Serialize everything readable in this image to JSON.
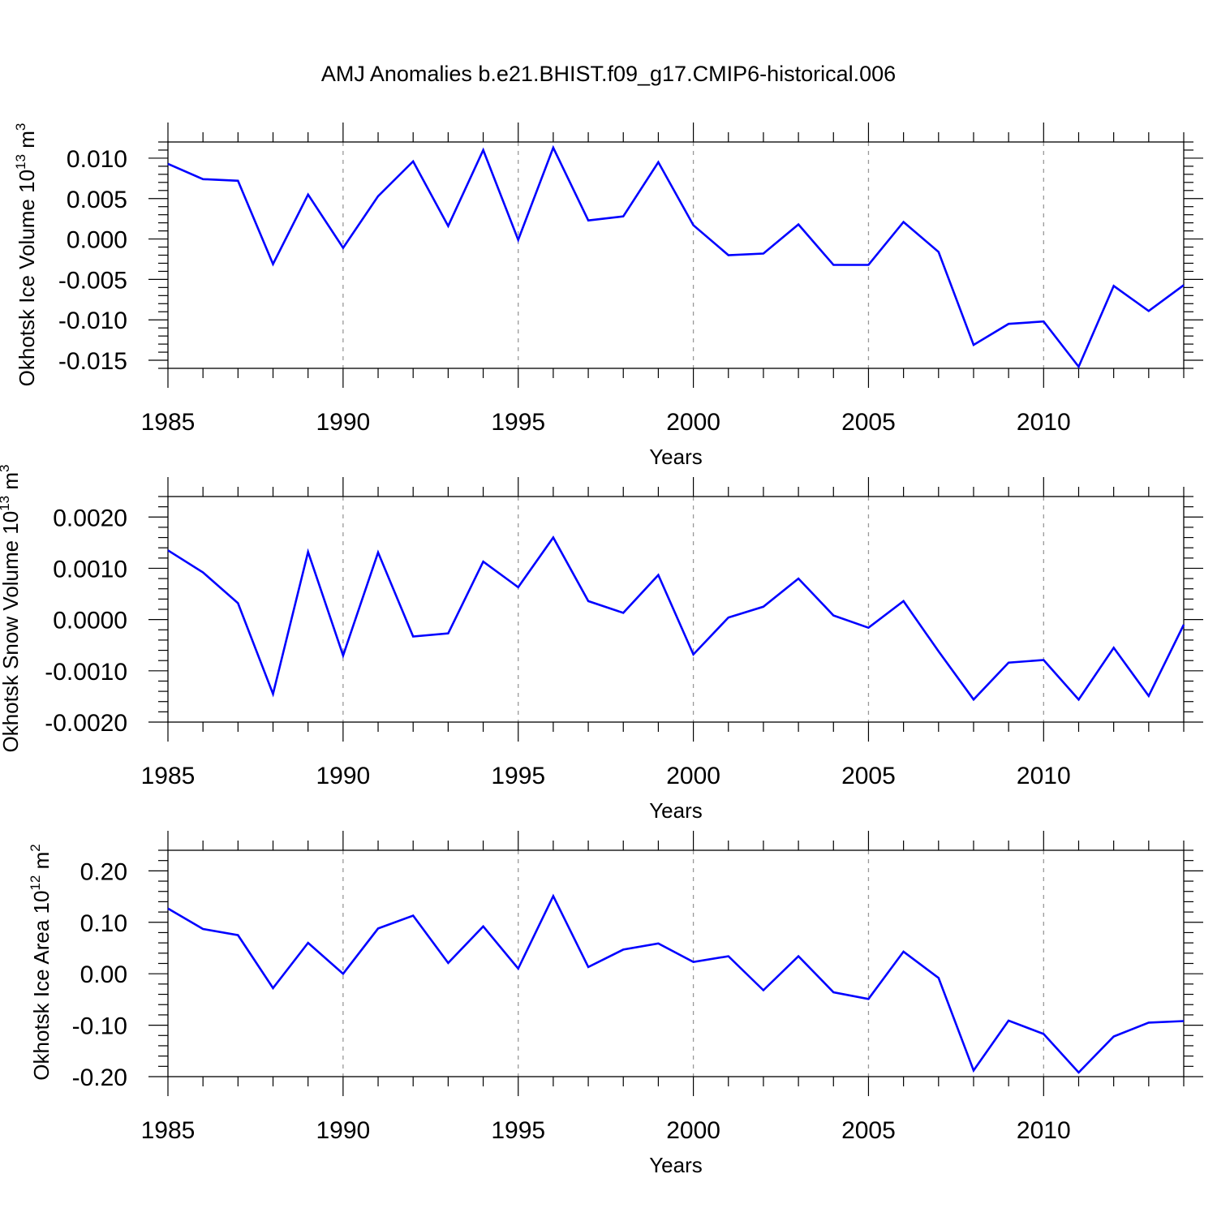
{
  "title": "AMJ Anomalies b.e21.BHIST.f09_g17.CMIP6-historical.006",
  "colors": {
    "line": "#0000ff",
    "axes": "#000000",
    "grid": "#999999"
  },
  "chart_data": [
    {
      "type": "line",
      "ylabel": {
        "main": "Okhotsk Ice Volume 10",
        "sup": "13",
        "unit": " m",
        "unit_sup": "3"
      },
      "xlabel": "Years",
      "xlim": [
        1985,
        2014
      ],
      "ylim": [
        -0.016,
        0.012
      ],
      "yticks": [
        -0.015,
        -0.01,
        -0.005,
        0.0,
        0.005,
        0.01
      ],
      "ytick_labels": [
        "-0.015",
        "-0.010",
        "-0.005",
        "0.000",
        "0.005",
        "0.010"
      ],
      "xticks": [
        1985,
        1990,
        1995,
        2000,
        2005,
        2010
      ],
      "xtick_labels": [
        "1985",
        "1990",
        "1995",
        "2000",
        "2005",
        "2010"
      ],
      "grid": "vertical dashed at major x ticks",
      "series": [
        {
          "x": [
            1985,
            1986,
            1987,
            1988,
            1989,
            1990,
            1991,
            1992,
            1993,
            1994,
            1995,
            1996,
            1997,
            1998,
            1999,
            2000,
            2001,
            2002,
            2003,
            2004,
            2005,
            2006,
            2007,
            2008,
            2009,
            2010,
            2011,
            2012,
            2013,
            2014
          ],
          "values": [
            0.0093,
            0.0074,
            0.0072,
            -0.0031,
            0.0055,
            -0.0011,
            0.0053,
            0.0096,
            0.0016,
            0.011,
            -0.0001,
            0.0113,
            0.0023,
            0.0028,
            0.0095,
            0.0017,
            -0.002,
            -0.0018,
            0.0018,
            -0.0032,
            -0.0032,
            0.0021,
            -0.0016,
            -0.0131,
            -0.0105,
            -0.0102,
            -0.0158,
            -0.0058,
            -0.0089,
            -0.0057
          ]
        }
      ]
    },
    {
      "type": "line",
      "ylabel": {
        "main": "Okhotsk Snow Volume 10",
        "sup": "13",
        "unit": " m",
        "unit_sup": "3"
      },
      "xlabel": "Years",
      "xlim": [
        1985,
        2014
      ],
      "ylim": [
        -0.002,
        0.0024
      ],
      "yticks": [
        -0.002,
        -0.001,
        0.0,
        0.001,
        0.002
      ],
      "ytick_labels": [
        "-0.0020",
        "-0.0010",
        "0.0000",
        "0.0010",
        "0.0020"
      ],
      "xticks": [
        1985,
        1990,
        1995,
        2000,
        2005,
        2010
      ],
      "xtick_labels": [
        "1985",
        "1990",
        "1995",
        "2000",
        "2005",
        "2010"
      ],
      "grid": "vertical dashed at major x ticks",
      "series": [
        {
          "x": [
            1985,
            1986,
            1987,
            1988,
            1989,
            1990,
            1991,
            1992,
            1993,
            1994,
            1995,
            1996,
            1997,
            1998,
            1999,
            2000,
            2001,
            2002,
            2003,
            2004,
            2005,
            2006,
            2007,
            2008,
            2009,
            2010,
            2011,
            2012,
            2013,
            2014
          ],
          "values": [
            0.00135,
            0.00092,
            0.00032,
            -0.00145,
            0.00132,
            -0.0007,
            0.00131,
            -0.00033,
            -0.00027,
            0.00113,
            0.00063,
            0.0016,
            0.00036,
            0.00013,
            0.00087,
            -0.00068,
            4e-05,
            0.00025,
            0.0008,
            8e-05,
            -0.00016,
            0.00036,
            -0.00062,
            -0.00156,
            -0.00084,
            -0.00079,
            -0.00156,
            -0.00055,
            -0.00149,
            -0.0001
          ]
        }
      ]
    },
    {
      "type": "line",
      "ylabel": {
        "main": "Okhotsk Ice Area 10",
        "sup": "12",
        "unit": " m",
        "unit_sup": "2"
      },
      "xlabel": "Years",
      "xlim": [
        1985,
        2014
      ],
      "ylim": [
        -0.2,
        0.24
      ],
      "yticks": [
        -0.2,
        -0.1,
        0.0,
        0.1,
        0.2
      ],
      "ytick_labels": [
        "-0.20",
        "-0.10",
        "0.00",
        "0.10",
        "0.20"
      ],
      "xticks": [
        1985,
        1990,
        1995,
        2000,
        2005,
        2010
      ],
      "xtick_labels": [
        "1985",
        "1990",
        "1995",
        "2000",
        "2005",
        "2010"
      ],
      "grid": "vertical dashed at major x ticks",
      "series": [
        {
          "x": [
            1985,
            1986,
            1987,
            1988,
            1989,
            1990,
            1991,
            1992,
            1993,
            1994,
            1995,
            1996,
            1997,
            1998,
            1999,
            2000,
            2001,
            2002,
            2003,
            2004,
            2005,
            2006,
            2007,
            2008,
            2009,
            2010,
            2011,
            2012,
            2013,
            2014
          ],
          "values": [
            0.127,
            0.087,
            0.075,
            -0.028,
            0.06,
            0.0,
            0.088,
            0.113,
            0.021,
            0.092,
            0.01,
            0.151,
            0.013,
            0.047,
            0.059,
            0.023,
            0.034,
            -0.032,
            0.034,
            -0.036,
            -0.049,
            0.043,
            -0.008,
            -0.188,
            -0.091,
            -0.117,
            -0.192,
            -0.122,
            -0.095,
            -0.092
          ]
        }
      ]
    }
  ]
}
